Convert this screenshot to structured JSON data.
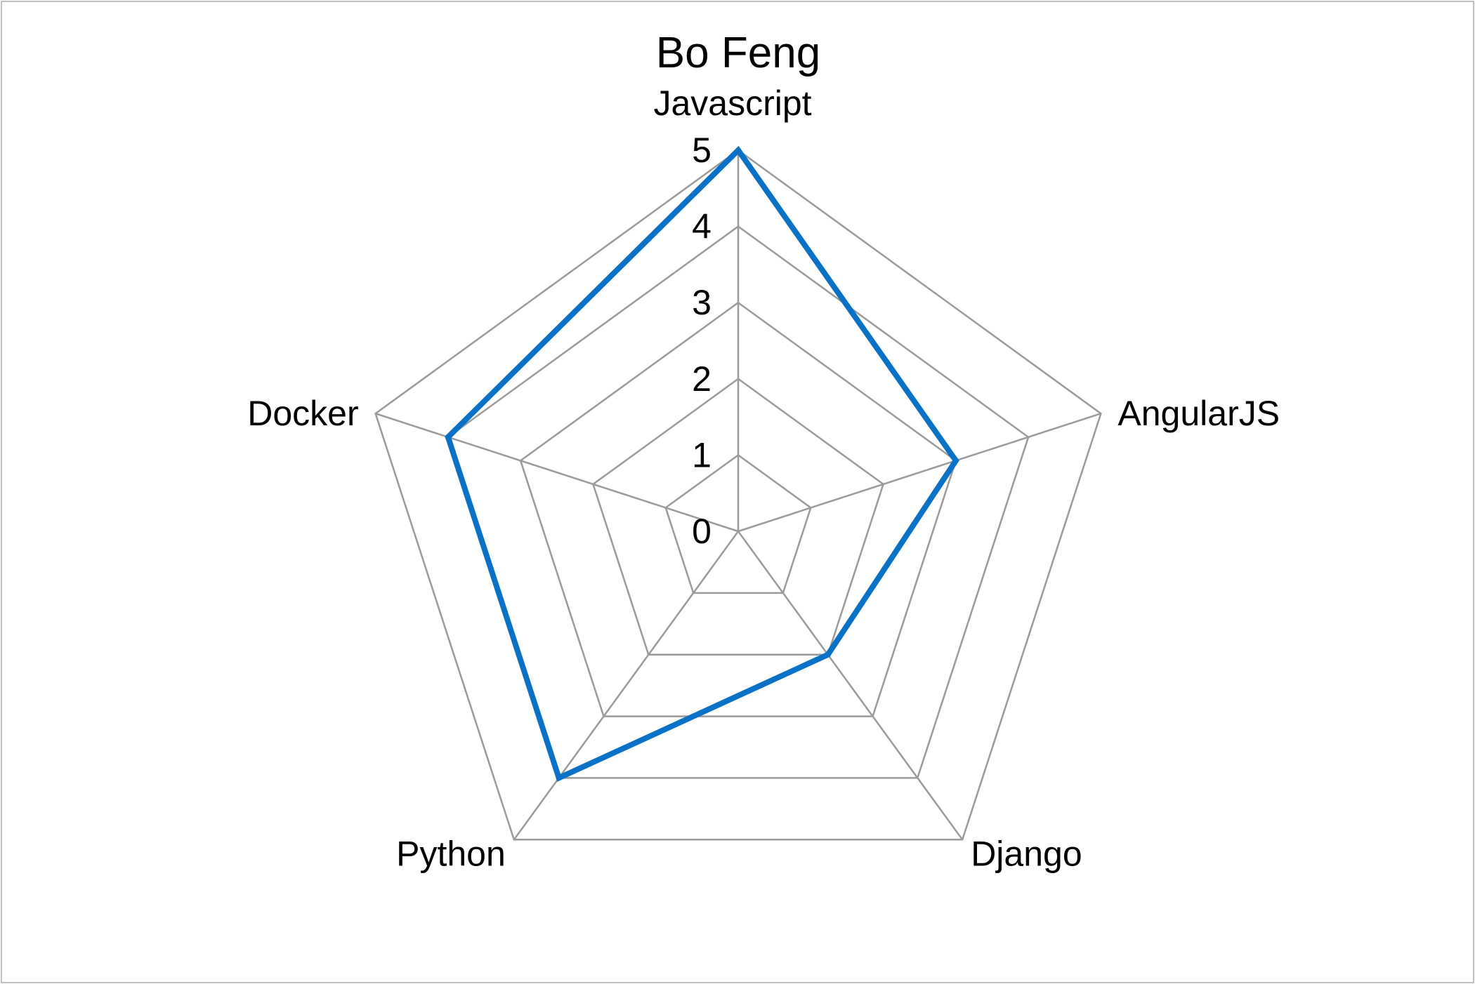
{
  "chart_data": {
    "type": "radar",
    "title": "Bo Feng",
    "categories": [
      "Javascript",
      "AngularJS",
      "Django",
      "Python",
      "Docker"
    ],
    "series": [
      {
        "values": [
          5,
          3,
          2,
          4,
          4
        ]
      }
    ],
    "rlim": [
      0,
      5
    ],
    "r_ticks": [
      "0",
      "1",
      "2",
      "3",
      "4",
      "5"
    ],
    "grid": true,
    "legend": "none",
    "colors": {
      "series": "#0a72c6",
      "grid": "#9a9a9a",
      "border": "#bfbfbf"
    }
  }
}
